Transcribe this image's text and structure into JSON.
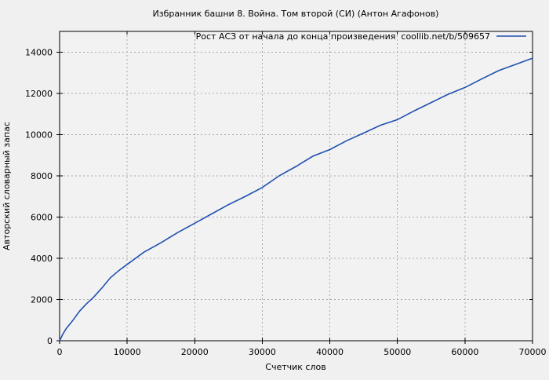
{
  "colors": {
    "figure_background": "#f0f0f0",
    "plot_background": "#f2f2f2",
    "grid": "#a9a9a9",
    "axis": "#000000",
    "text": "#000000",
    "series_line": "#2050b0"
  },
  "chart_data": {
    "type": "line",
    "title": "Избранник башни 8. Война. Том второй (СИ) (Антон Агафонов)",
    "xlabel": "Счетчик слов",
    "ylabel": "Авторский словарный запас",
    "xlim": [
      0,
      70000
    ],
    "ylim": [
      0,
      15000
    ],
    "xticks": [
      0,
      10000,
      20000,
      30000,
      40000,
      50000,
      60000,
      70000
    ],
    "yticks": [
      0,
      2000,
      4000,
      6000,
      8000,
      10000,
      12000,
      14000
    ],
    "grid": true,
    "legend_position": "top-right-inside",
    "legend": [
      {
        "label": "Рост АСЗ от начала до конца произведения  coollib.net/b/509657",
        "color": "#2050b0"
      }
    ],
    "series": [
      {
        "name": "Рост АСЗ от начала до конца произведения coollib.net/b/509657",
        "color": "#2050b0",
        "points": [
          [
            0,
            0
          ],
          [
            500,
            330
          ],
          [
            1000,
            600
          ],
          [
            1500,
            800
          ],
          [
            2000,
            1000
          ],
          [
            2500,
            1230
          ],
          [
            3000,
            1450
          ],
          [
            3500,
            1630
          ],
          [
            4000,
            1800
          ],
          [
            4500,
            1950
          ],
          [
            5000,
            2100
          ],
          [
            6250,
            2550
          ],
          [
            7500,
            3050
          ],
          [
            8750,
            3400
          ],
          [
            10000,
            3700
          ],
          [
            12500,
            4300
          ],
          [
            15000,
            4750
          ],
          [
            17500,
            5250
          ],
          [
            20000,
            5700
          ],
          [
            22500,
            6150
          ],
          [
            25000,
            6600
          ],
          [
            27500,
            7000
          ],
          [
            30000,
            7430
          ],
          [
            32500,
            8000
          ],
          [
            35000,
            8450
          ],
          [
            37500,
            8950
          ],
          [
            40000,
            9270
          ],
          [
            42500,
            9700
          ],
          [
            45000,
            10070
          ],
          [
            47500,
            10450
          ],
          [
            50000,
            10720
          ],
          [
            52500,
            11150
          ],
          [
            55000,
            11550
          ],
          [
            57500,
            11950
          ],
          [
            60000,
            12280
          ],
          [
            62500,
            12700
          ],
          [
            65000,
            13100
          ],
          [
            67500,
            13400
          ],
          [
            70000,
            13700
          ]
        ]
      }
    ]
  }
}
